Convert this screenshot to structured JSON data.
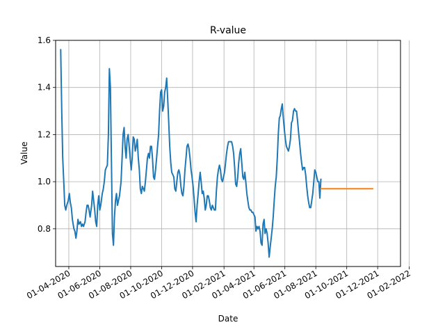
{
  "chart_data": {
    "type": "line",
    "title": "R-value",
    "xlabel": "Date",
    "ylabel": "Value",
    "grid": true,
    "xlim": [
      "2020-03-06",
      "2022-01-15"
    ],
    "ylim": [
      0.64,
      1.6
    ],
    "x_ticks": [
      "01-04-2020",
      "01-06-2020",
      "01-08-2020",
      "01-10-2020",
      "01-12-2020",
      "01-02-2021",
      "01-04-2021",
      "01-06-2021",
      "01-08-2021",
      "01-10-2021",
      "01-12-2021",
      "01-02-2022"
    ],
    "y_ticks": [
      "0.8",
      "1.0",
      "1.2",
      "1.4",
      "1.6"
    ],
    "series": [
      {
        "color": "#1f77b4",
        "points": [
          [
            "2020-03-16",
            1.56
          ],
          [
            "2020-03-18",
            1.3
          ],
          [
            "2020-03-20",
            1.1
          ],
          [
            "2020-03-22",
            1.0
          ],
          [
            "2020-03-24",
            0.9
          ],
          [
            "2020-03-26",
            0.88
          ],
          [
            "2020-03-28",
            0.9
          ],
          [
            "2020-03-31",
            0.92
          ],
          [
            "2020-04-02",
            0.95
          ],
          [
            "2020-04-04",
            0.91
          ],
          [
            "2020-04-06",
            0.89
          ],
          [
            "2020-04-08",
            0.84
          ],
          [
            "2020-04-11",
            0.8
          ],
          [
            "2020-04-13",
            0.79
          ],
          [
            "2020-04-15",
            0.76
          ],
          [
            "2020-04-17",
            0.79
          ],
          [
            "2020-04-19",
            0.84
          ],
          [
            "2020-04-21",
            0.82
          ],
          [
            "2020-04-24",
            0.83
          ],
          [
            "2020-04-26",
            0.81
          ],
          [
            "2020-04-28",
            0.82
          ],
          [
            "2020-04-30",
            0.81
          ],
          [
            "2020-05-03",
            0.83
          ],
          [
            "2020-05-05",
            0.87
          ],
          [
            "2020-05-07",
            0.9
          ],
          [
            "2020-05-09",
            0.9
          ],
          [
            "2020-05-11",
            0.88
          ],
          [
            "2020-05-13",
            0.85
          ],
          [
            "2020-05-16",
            0.9
          ],
          [
            "2020-05-18",
            0.96
          ],
          [
            "2020-05-20",
            0.92
          ],
          [
            "2020-05-22",
            0.88
          ],
          [
            "2020-05-24",
            0.83
          ],
          [
            "2020-05-26",
            0.81
          ],
          [
            "2020-05-28",
            0.9
          ],
          [
            "2020-05-30",
            0.94
          ],
          [
            "2020-06-01",
            0.88
          ],
          [
            "2020-06-03",
            0.9
          ],
          [
            "2020-06-06",
            0.95
          ],
          [
            "2020-06-08",
            0.97
          ],
          [
            "2020-06-10",
            1.0
          ],
          [
            "2020-06-12",
            1.05
          ],
          [
            "2020-06-14",
            1.06
          ],
          [
            "2020-06-16",
            1.07
          ],
          [
            "2020-06-18",
            1.2
          ],
          [
            "2020-06-20",
            1.48
          ],
          [
            "2020-06-22",
            1.4
          ],
          [
            "2020-06-24",
            1.1
          ],
          [
            "2020-06-26",
            0.78
          ],
          [
            "2020-06-28",
            0.73
          ],
          [
            "2020-06-30",
            0.85
          ],
          [
            "2020-07-02",
            0.92
          ],
          [
            "2020-07-04",
            0.95
          ],
          [
            "2020-07-06",
            0.9
          ],
          [
            "2020-07-08",
            0.92
          ],
          [
            "2020-07-10",
            0.94
          ],
          [
            "2020-07-13",
            1.0
          ],
          [
            "2020-07-15",
            1.1
          ],
          [
            "2020-07-17",
            1.2
          ],
          [
            "2020-07-19",
            1.23
          ],
          [
            "2020-07-21",
            1.15
          ],
          [
            "2020-07-23",
            1.1
          ],
          [
            "2020-07-25",
            1.18
          ],
          [
            "2020-07-27",
            1.2
          ],
          [
            "2020-07-29",
            1.15
          ],
          [
            "2020-07-31",
            1.1
          ],
          [
            "2020-08-02",
            1.05
          ],
          [
            "2020-08-04",
            1.1
          ],
          [
            "2020-08-06",
            1.19
          ],
          [
            "2020-08-08",
            1.18
          ],
          [
            "2020-08-10",
            1.13
          ],
          [
            "2020-08-12",
            1.15
          ],
          [
            "2020-08-14",
            1.18
          ],
          [
            "2020-08-16",
            1.1
          ],
          [
            "2020-08-18",
            1.05
          ],
          [
            "2020-08-20",
            0.97
          ],
          [
            "2020-08-22",
            0.95
          ],
          [
            "2020-08-24",
            0.98
          ],
          [
            "2020-08-26",
            0.97
          ],
          [
            "2020-08-28",
            0.96
          ],
          [
            "2020-08-30",
            1.0
          ],
          [
            "2020-09-01",
            1.05
          ],
          [
            "2020-09-03",
            1.1
          ],
          [
            "2020-09-05",
            1.12
          ],
          [
            "2020-09-07",
            1.1
          ],
          [
            "2020-09-09",
            1.15
          ],
          [
            "2020-09-11",
            1.15
          ],
          [
            "2020-09-13",
            1.1
          ],
          [
            "2020-09-15",
            1.02
          ],
          [
            "2020-09-17",
            1.01
          ],
          [
            "2020-09-19",
            1.05
          ],
          [
            "2020-09-21",
            1.1
          ],
          [
            "2020-09-23",
            1.15
          ],
          [
            "2020-09-25",
            1.2
          ],
          [
            "2020-09-27",
            1.3
          ],
          [
            "2020-09-29",
            1.38
          ],
          [
            "2020-10-01",
            1.39
          ],
          [
            "2020-10-03",
            1.3
          ],
          [
            "2020-10-05",
            1.32
          ],
          [
            "2020-10-07",
            1.38
          ],
          [
            "2020-10-09",
            1.4
          ],
          [
            "2020-10-11",
            1.44
          ],
          [
            "2020-10-13",
            1.35
          ],
          [
            "2020-10-15",
            1.25
          ],
          [
            "2020-10-17",
            1.15
          ],
          [
            "2020-10-19",
            1.08
          ],
          [
            "2020-10-21",
            1.04
          ],
          [
            "2020-10-23",
            1.03
          ],
          [
            "2020-10-25",
            1.02
          ],
          [
            "2020-10-27",
            0.97
          ],
          [
            "2020-10-29",
            0.96
          ],
          [
            "2020-10-31",
            1.0
          ],
          [
            "2020-11-02",
            1.04
          ],
          [
            "2020-11-04",
            1.05
          ],
          [
            "2020-11-06",
            1.03
          ],
          [
            "2020-11-08",
            0.98
          ],
          [
            "2020-11-10",
            0.95
          ],
          [
            "2020-11-12",
            0.94
          ],
          [
            "2020-11-14",
            0.98
          ],
          [
            "2020-11-16",
            1.05
          ],
          [
            "2020-11-18",
            1.1
          ],
          [
            "2020-11-20",
            1.15
          ],
          [
            "2020-11-22",
            1.16
          ],
          [
            "2020-11-24",
            1.14
          ],
          [
            "2020-11-26",
            1.1
          ],
          [
            "2020-11-28",
            1.05
          ],
          [
            "2020-11-30",
            1.02
          ],
          [
            "2020-12-02",
            0.98
          ],
          [
            "2020-12-04",
            0.93
          ],
          [
            "2020-12-06",
            0.87
          ],
          [
            "2020-12-08",
            0.83
          ],
          [
            "2020-12-10",
            0.9
          ],
          [
            "2020-12-12",
            0.95
          ],
          [
            "2020-12-14",
            1.0
          ],
          [
            "2020-12-16",
            1.04
          ],
          [
            "2020-12-18",
            1.0
          ],
          [
            "2020-12-20",
            0.95
          ],
          [
            "2020-12-22",
            0.96
          ],
          [
            "2020-12-24",
            0.93
          ],
          [
            "2020-12-26",
            0.88
          ],
          [
            "2020-12-28",
            0.9
          ],
          [
            "2020-12-30",
            0.94
          ],
          [
            "2021-01-01",
            0.94
          ],
          [
            "2021-01-03",
            0.92
          ],
          [
            "2021-01-05",
            0.89
          ],
          [
            "2021-01-07",
            0.88
          ],
          [
            "2021-01-09",
            0.9
          ],
          [
            "2021-01-11",
            0.89
          ],
          [
            "2021-01-13",
            0.88
          ],
          [
            "2021-01-15",
            0.88
          ],
          [
            "2021-01-17",
            0.96
          ],
          [
            "2021-01-19",
            1.02
          ],
          [
            "2021-01-21",
            1.05
          ],
          [
            "2021-01-23",
            1.07
          ],
          [
            "2021-01-25",
            1.05
          ],
          [
            "2021-01-27",
            1.01
          ],
          [
            "2021-01-29",
            1.0
          ],
          [
            "2021-01-31",
            1.02
          ],
          [
            "2021-02-02",
            1.04
          ],
          [
            "2021-02-04",
            1.08
          ],
          [
            "2021-02-06",
            1.12
          ],
          [
            "2021-02-08",
            1.15
          ],
          [
            "2021-02-10",
            1.17
          ],
          [
            "2021-02-12",
            1.17
          ],
          [
            "2021-02-14",
            1.17
          ],
          [
            "2021-02-16",
            1.17
          ],
          [
            "2021-02-18",
            1.15
          ],
          [
            "2021-02-20",
            1.12
          ],
          [
            "2021-02-22",
            1.06
          ],
          [
            "2021-02-24",
            0.99
          ],
          [
            "2021-02-26",
            0.98
          ],
          [
            "2021-02-28",
            1.02
          ],
          [
            "2021-03-02",
            1.08
          ],
          [
            "2021-03-04",
            1.12
          ],
          [
            "2021-03-06",
            1.14
          ],
          [
            "2021-03-08",
            1.08
          ],
          [
            "2021-03-10",
            1.02
          ],
          [
            "2021-03-12",
            1.01
          ],
          [
            "2021-03-14",
            1.04
          ],
          [
            "2021-03-16",
            1.0
          ],
          [
            "2021-03-18",
            0.95
          ],
          [
            "2021-03-20",
            0.92
          ],
          [
            "2021-03-22",
            0.89
          ],
          [
            "2021-03-24",
            0.88
          ],
          [
            "2021-03-26",
            0.88
          ],
          [
            "2021-03-28",
            0.87
          ],
          [
            "2021-03-30",
            0.87
          ],
          [
            "2021-04-01",
            0.86
          ],
          [
            "2021-04-03",
            0.85
          ],
          [
            "2021-04-05",
            0.79
          ],
          [
            "2021-04-07",
            0.81
          ],
          [
            "2021-04-09",
            0.8
          ],
          [
            "2021-04-11",
            0.81
          ],
          [
            "2021-04-13",
            0.79
          ],
          [
            "2021-04-15",
            0.74
          ],
          [
            "2021-04-17",
            0.73
          ],
          [
            "2021-04-19",
            0.82
          ],
          [
            "2021-04-21",
            0.84
          ],
          [
            "2021-04-23",
            0.78
          ],
          [
            "2021-04-25",
            0.8
          ],
          [
            "2021-04-27",
            0.78
          ],
          [
            "2021-04-29",
            0.74
          ],
          [
            "2021-05-01",
            0.68
          ],
          [
            "2021-05-03",
            0.72
          ],
          [
            "2021-05-05",
            0.76
          ],
          [
            "2021-05-07",
            0.8
          ],
          [
            "2021-05-09",
            0.85
          ],
          [
            "2021-05-11",
            0.92
          ],
          [
            "2021-05-13",
            0.98
          ],
          [
            "2021-05-15",
            1.02
          ],
          [
            "2021-05-17",
            1.1
          ],
          [
            "2021-05-19",
            1.2
          ],
          [
            "2021-05-21",
            1.27
          ],
          [
            "2021-05-23",
            1.28
          ],
          [
            "2021-05-25",
            1.31
          ],
          [
            "2021-05-27",
            1.33
          ],
          [
            "2021-05-29",
            1.27
          ],
          [
            "2021-05-31",
            1.22
          ],
          [
            "2021-06-02",
            1.18
          ],
          [
            "2021-06-04",
            1.15
          ],
          [
            "2021-06-06",
            1.14
          ],
          [
            "2021-06-08",
            1.13
          ],
          [
            "2021-06-10",
            1.15
          ],
          [
            "2021-06-12",
            1.18
          ],
          [
            "2021-06-14",
            1.25
          ],
          [
            "2021-06-16",
            1.26
          ],
          [
            "2021-06-18",
            1.3
          ],
          [
            "2021-06-20",
            1.31
          ],
          [
            "2021-06-22",
            1.3
          ],
          [
            "2021-06-24",
            1.3
          ],
          [
            "2021-06-26",
            1.26
          ],
          [
            "2021-06-28",
            1.21
          ],
          [
            "2021-06-30",
            1.17
          ],
          [
            "2021-07-02",
            1.12
          ],
          [
            "2021-07-04",
            1.08
          ],
          [
            "2021-07-06",
            1.05
          ],
          [
            "2021-07-08",
            1.06
          ],
          [
            "2021-07-10",
            1.06
          ],
          [
            "2021-07-12",
            1.03
          ],
          [
            "2021-07-14",
            0.98
          ],
          [
            "2021-07-16",
            0.94
          ],
          [
            "2021-07-18",
            0.91
          ],
          [
            "2021-07-20",
            0.89
          ],
          [
            "2021-07-22",
            0.89
          ],
          [
            "2021-07-24",
            0.92
          ],
          [
            "2021-07-26",
            0.95
          ],
          [
            "2021-07-28",
            1.0
          ],
          [
            "2021-07-30",
            1.05
          ],
          [
            "2021-08-01",
            1.04
          ],
          [
            "2021-08-03",
            1.02
          ],
          [
            "2021-08-05",
            1.0
          ],
          [
            "2021-08-07",
            1.0
          ],
          [
            "2021-08-09",
            0.93
          ],
          [
            "2021-08-11",
            1.01
          ]
        ]
      },
      {
        "color": "#ff7f0e",
        "points": [
          [
            "2021-08-11",
            0.97
          ],
          [
            "2021-11-21",
            0.97
          ]
        ]
      }
    ]
  }
}
